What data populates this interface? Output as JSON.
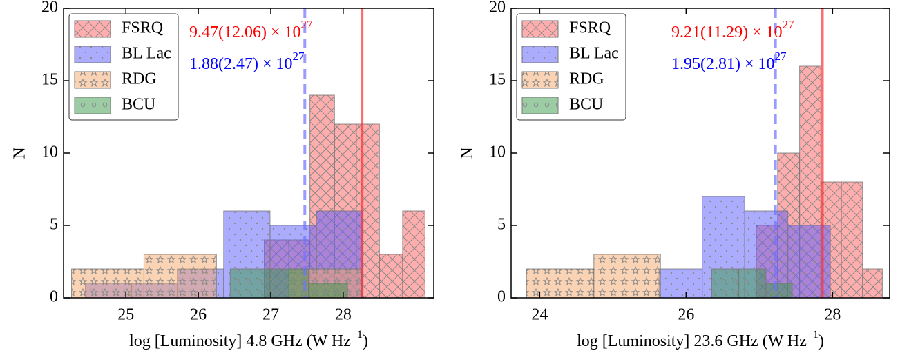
{
  "chart_data": [
    {
      "type": "histogram",
      "xlabel": {
        "text": "log [Luminosity] 4.8 GHz (W Hz",
        "sup": "−1",
        "tail": ")"
      },
      "ylabel": "N",
      "xlim": [
        24.14,
        29.25
      ],
      "xticks": [
        25,
        26,
        27,
        28
      ],
      "ylim": [
        0,
        20
      ],
      "yticks": [
        0,
        5,
        10,
        15,
        20
      ],
      "legend": "upper left",
      "series": [
        {
          "name": "FSRQ",
          "color": "#ff5c5c",
          "hatch": "x",
          "bins": [
            26.91,
            27.25,
            27.54,
            27.88,
            28.18,
            28.5,
            28.82,
            29.13
          ],
          "counts": [
            4,
            4,
            14,
            12,
            12,
            3,
            6
          ]
        },
        {
          "name": "BL Lac",
          "color": "#5a5aff",
          "hatch": ".",
          "bins": [
            24.44,
            25.08,
            25.71,
            26.35,
            26.99,
            27.63,
            28.27
          ],
          "counts": [
            1,
            1,
            2,
            6,
            5,
            6
          ]
        },
        {
          "name": "RDG",
          "color": "#f5a76a",
          "hatch": "*",
          "bins": [
            24.25,
            25.25,
            26.25,
            27.25,
            28.25
          ],
          "counts": [
            2,
            3,
            0,
            2
          ]
        },
        {
          "name": "BCU",
          "color": "#3a9a4a",
          "hatch": "o",
          "bins": [
            26.44,
            26.98,
            27.52,
            28.06
          ],
          "counts": [
            2,
            2,
            1
          ]
        }
      ],
      "vlines": [
        {
          "x": 28.26,
          "color": "#ff3030",
          "style": "solid"
        },
        {
          "x": 27.47,
          "color": "#7070ff",
          "style": "dashed"
        }
      ],
      "annotations": [
        {
          "text": "9.47(12.06) × 10",
          "sup": "27",
          "color": "#ff0000"
        },
        {
          "text": "1.88(2.47) × 10",
          "sup": "27",
          "color": "#0000ff"
        }
      ]
    },
    {
      "type": "histogram",
      "xlabel": {
        "text": "log [Luminosity] 23.6 GHz (W Hz",
        "sup": "−1",
        "tail": ")"
      },
      "ylabel": "N",
      "xlim": [
        23.61,
        28.78
      ],
      "xticks": [
        24,
        26,
        28
      ],
      "ylim": [
        0,
        20
      ],
      "yticks": [
        0,
        5,
        10,
        15,
        20
      ],
      "legend": "upper left",
      "series": [
        {
          "name": "FSRQ",
          "color": "#ff5c5c",
          "hatch": "x",
          "bins": [
            26.96,
            27.25,
            27.55,
            27.84,
            28.12,
            28.41,
            28.68
          ],
          "counts": [
            5,
            10,
            16,
            8,
            8,
            2
          ]
        },
        {
          "name": "BL Lac",
          "color": "#5a5aff",
          "hatch": ".",
          "bins": [
            25.63,
            26.22,
            26.8,
            27.39,
            27.97
          ],
          "counts": [
            2,
            7,
            6,
            5
          ]
        },
        {
          "name": "RDG",
          "color": "#f5a76a",
          "hatch": "*",
          "bins": [
            23.82,
            24.74,
            25.65
          ],
          "counts": [
            2,
            3
          ]
        },
        {
          "name": "BCU",
          "color": "#3a9a4a",
          "hatch": "o",
          "bins": [
            26.35,
            26.72,
            27.09,
            27.45
          ],
          "counts": [
            2,
            2,
            1
          ]
        }
      ],
      "vlines": [
        {
          "x": 27.86,
          "color": "#ff3030",
          "style": "solid"
        },
        {
          "x": 27.22,
          "color": "#7070ff",
          "style": "dashed"
        }
      ],
      "annotations": [
        {
          "text": "9.21(11.29) × 10",
          "sup": "27",
          "color": "#ff0000"
        },
        {
          "text": "1.95(2.81) × 10",
          "sup": "27",
          "color": "#0000ff"
        }
      ]
    }
  ]
}
